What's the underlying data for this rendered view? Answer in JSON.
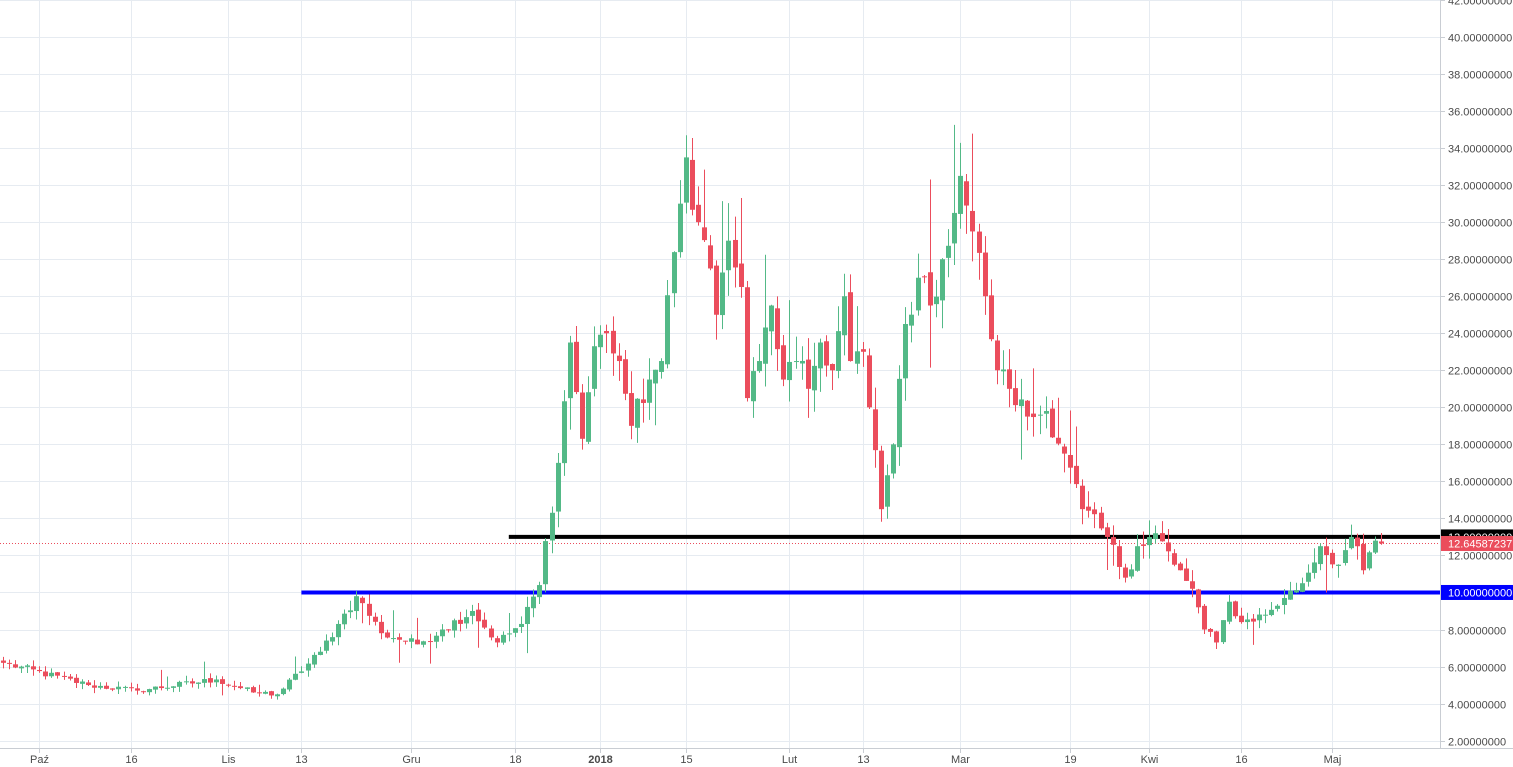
{
  "chart_data": {
    "type": "candlestick",
    "y_axis": {
      "min": 1.6,
      "max": 42.0,
      "tick_values": [
        2,
        4,
        6,
        8,
        10,
        12,
        14,
        16,
        18,
        20,
        22,
        24,
        26,
        28,
        30,
        32,
        34,
        36,
        38,
        40,
        42
      ],
      "tick_labels": [
        "2.00000000",
        "4.00000000",
        "6.00000000",
        "8.00000000",
        "10.00000000",
        "12.00000000",
        "14.00000000",
        "16.00000000",
        "18.00000000",
        "20.00000000",
        "22.00000000",
        "24.00000000",
        "26.00000000",
        "28.00000000",
        "30.00000000",
        "32.00000000",
        "34.00000000",
        "36.00000000",
        "38.00000000",
        "40.00000000",
        "42.00000000"
      ],
      "position": "right",
      "grid": true
    },
    "x_axis": {
      "first_date": "2017-09-25",
      "last_date": "2018-04-30",
      "ticks": [
        {
          "label": "Paź",
          "date": "2017-10-01",
          "bold": false
        },
        {
          "label": "16",
          "date": "2017-10-16",
          "bold": false
        },
        {
          "label": "Lis",
          "date": "2017-11-01",
          "bold": false
        },
        {
          "label": "13",
          "date": "2017-11-13",
          "bold": false
        },
        {
          "label": "Gru",
          "date": "2017-12-01",
          "bold": false
        },
        {
          "label": "18",
          "date": "2017-12-18",
          "bold": false
        },
        {
          "label": "2018",
          "date": "2018-01-01",
          "bold": true
        },
        {
          "label": "15",
          "date": "2018-01-15",
          "bold": false
        },
        {
          "label": "Lut",
          "date": "2018-02-01",
          "bold": false
        },
        {
          "label": "13",
          "date": "2018-02-13",
          "bold": false
        },
        {
          "label": "Mar",
          "date": "2018-03-01",
          "bold": false
        },
        {
          "label": "19",
          "date": "2018-03-19",
          "bold": false
        },
        {
          "label": "Kwi",
          "date": "2018-04-01",
          "bold": false
        },
        {
          "label": "16",
          "date": "2018-04-16",
          "bold": false
        },
        {
          "label": "Maj",
          "date": "2018-05-01",
          "bold": false
        }
      ],
      "grid": true
    },
    "colors": {
      "up": "#53b987",
      "down": "#eb4d5c",
      "grid": "#e6ebf1",
      "axis_text": "#4a4a4a",
      "resistance_line": "#000000",
      "support_line": "#0000ff",
      "last_price_line": "#eb4d5c"
    },
    "anchors": [
      {
        "d": 0,
        "c": 6.2
      },
      {
        "d": 14,
        "c": 5.0
      },
      {
        "d": 22,
        "c": 4.7
      },
      {
        "d": 35,
        "c": 5.3
      },
      {
        "d": 41,
        "c": 4.6
      },
      {
        "d": 45,
        "c": 4.5
      },
      {
        "d": 52,
        "c": 6.8
      },
      {
        "d": 55,
        "c": 8.3
      },
      {
        "d": 58,
        "c": 9.8
      },
      {
        "d": 62,
        "c": 7.8
      },
      {
        "d": 68,
        "c": 7.2
      },
      {
        "d": 72,
        "c": 8.0
      },
      {
        "d": 77,
        "c": 9.0
      },
      {
        "d": 81,
        "c": 7.3
      },
      {
        "d": 85,
        "c": 8.3
      },
      {
        "d": 88,
        "c": 10.4
      },
      {
        "d": 91,
        "c": 17.0
      },
      {
        "d": 93,
        "c": 23.5
      },
      {
        "d": 95,
        "c": 18.3
      },
      {
        "d": 97,
        "c": 23.3
      },
      {
        "d": 99,
        "c": 24.0
      },
      {
        "d": 101,
        "c": 22.5
      },
      {
        "d": 103,
        "c": 19.0
      },
      {
        "d": 106,
        "c": 21.5
      },
      {
        "d": 108,
        "c": 22.5
      },
      {
        "d": 111,
        "c": 31.0
      },
      {
        "d": 112,
        "c": 33.5
      },
      {
        "d": 114,
        "c": 30.0
      },
      {
        "d": 116,
        "c": 27.5
      },
      {
        "d": 117,
        "c": 25.0
      },
      {
        "d": 119,
        "c": 29.0
      },
      {
        "d": 121,
        "c": 26.5
      },
      {
        "d": 122,
        "c": 20.5
      },
      {
        "d": 124,
        "c": 22.5
      },
      {
        "d": 126,
        "c": 25.5
      },
      {
        "d": 128,
        "c": 21.5
      },
      {
        "d": 130,
        "c": 22.5
      },
      {
        "d": 132,
        "c": 21.0
      },
      {
        "d": 134,
        "c": 23.5
      },
      {
        "d": 136,
        "c": 22.0
      },
      {
        "d": 138,
        "c": 26.0
      },
      {
        "d": 139,
        "c": 22.5
      },
      {
        "d": 141,
        "c": 23.0
      },
      {
        "d": 142,
        "c": 20.0
      },
      {
        "d": 144,
        "c": 14.5
      },
      {
        "d": 146,
        "c": 18.0
      },
      {
        "d": 148,
        "c": 24.5
      },
      {
        "d": 150,
        "c": 27.0
      },
      {
        "d": 152,
        "c": 25.5
      },
      {
        "d": 154,
        "c": 28.0
      },
      {
        "d": 156,
        "c": 30.5
      },
      {
        "d": 157,
        "c": 32.5
      },
      {
        "d": 159,
        "c": 29.5
      },
      {
        "d": 161,
        "c": 26.0
      },
      {
        "d": 163,
        "c": 22.0
      },
      {
        "d": 165,
        "c": 21.0
      },
      {
        "d": 168,
        "c": 19.5
      },
      {
        "d": 171,
        "c": 19.8
      },
      {
        "d": 174,
        "c": 17.5
      },
      {
        "d": 177,
        "c": 14.5
      },
      {
        "d": 181,
        "c": 13.0
      },
      {
        "d": 184,
        "c": 10.8
      },
      {
        "d": 186,
        "c": 12.5
      },
      {
        "d": 189,
        "c": 13.2
      },
      {
        "d": 192,
        "c": 11.5
      },
      {
        "d": 195,
        "c": 10.2
      },
      {
        "d": 197,
        "c": 8.0
      },
      {
        "d": 199,
        "c": 7.3
      },
      {
        "d": 201,
        "c": 9.5
      },
      {
        "d": 203,
        "c": 8.4
      },
      {
        "d": 207,
        "c": 8.8
      },
      {
        "d": 210,
        "c": 9.7
      },
      {
        "d": 213,
        "c": 10.5
      },
      {
        "d": 216,
        "c": 12.5
      },
      {
        "d": 219,
        "c": 11.5
      },
      {
        "d": 221,
        "c": 13.0
      },
      {
        "d": 223,
        "c": 11.2
      },
      {
        "d": 225,
        "c": 12.8
      },
      {
        "d": 226,
        "c": 12.65
      }
    ],
    "horizontal_levels": [
      {
        "name": "resistance",
        "value": 13.0,
        "label": "13.00000000",
        "color": "#000000",
        "start_date": "2017-12-17"
      },
      {
        "name": "support",
        "value": 10.0,
        "label": "10.00000000",
        "color": "#0000ff",
        "start_date": "2017-11-13"
      },
      {
        "name": "last-price",
        "value": 12.64587237,
        "label": "12.64587237",
        "color": "#eb4d5c",
        "style": "dotted"
      }
    ]
  }
}
